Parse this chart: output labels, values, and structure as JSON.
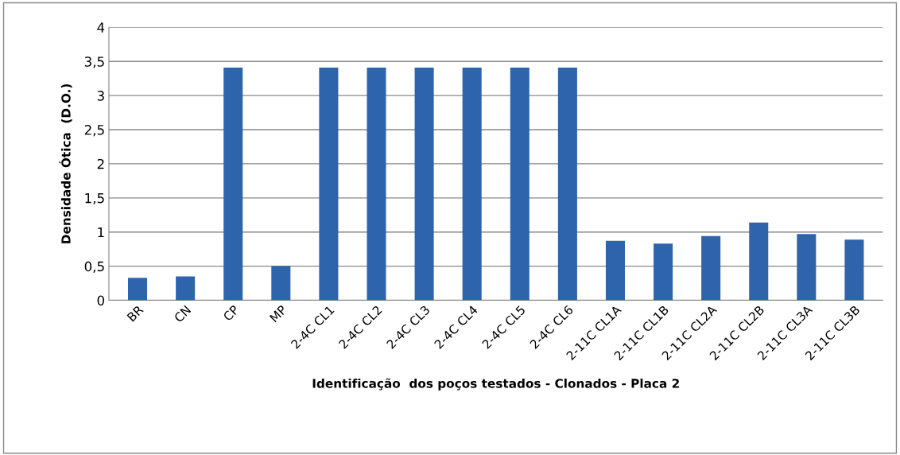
{
  "chart_data": {
    "type": "bar",
    "xlabel": "Identificação  dos poços testados - Clonados - Placa 2",
    "ylabel": "Densidade Ótica  (D.O.)",
    "categories": [
      "BR",
      "CN",
      "CP",
      "MP",
      "2-4C CL1",
      "2-4C CL2",
      "2-4C CL3",
      "2-4C CL4",
      "2-4C CL5",
      "2-4C CL6",
      "2-11C CL1A",
      "2-11C CL1B",
      "2-11C CL2A",
      "2-11C CL2B",
      "2-11C CL3A",
      "2-11C CL3B"
    ],
    "values": [
      0.33,
      0.35,
      3.41,
      0.5,
      3.41,
      3.41,
      3.41,
      3.41,
      3.41,
      3.41,
      0.87,
      0.83,
      0.94,
      1.14,
      0.97,
      0.89
    ],
    "color": "#2e64ac",
    "ylim": [
      0,
      4
    ],
    "yticks": [
      0,
      {
        "value": 0.5,
        "label": "0,5"
      },
      1,
      {
        "value": 1.5,
        "label": "1,5"
      },
      2,
      {
        "value": 2.5,
        "label": "2,5"
      },
      3,
      {
        "value": 3.5,
        "label": "3,5"
      },
      4
    ],
    "grid": "y"
  }
}
